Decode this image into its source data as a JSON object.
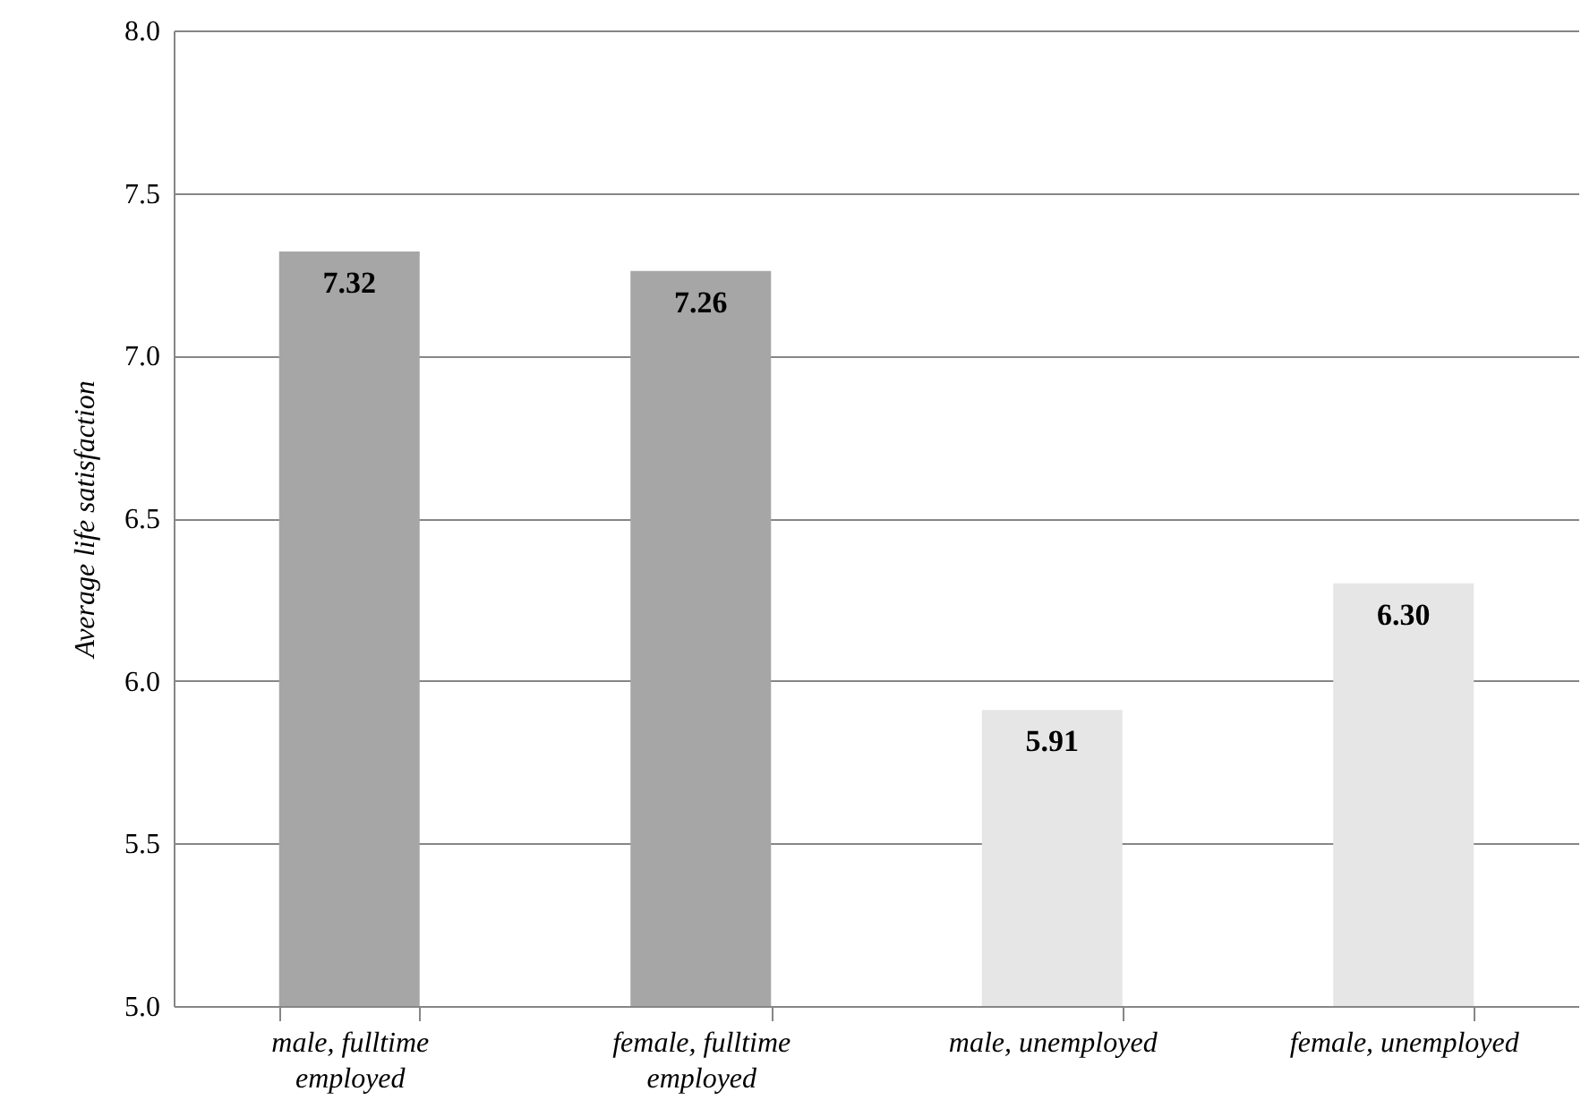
{
  "chart_data": {
    "type": "bar",
    "ylabel": "Average life satisfaction",
    "categories": [
      "male, fulltime employed",
      "female, fulltime employed",
      "male, unemployed",
      "female, unemployed"
    ],
    "values": [
      7.32,
      7.26,
      5.91,
      6.3
    ],
    "value_labels": [
      "7.32",
      "7.26",
      "5.91",
      "6.30"
    ],
    "colors": [
      "#a6a6a6",
      "#a6a6a6",
      "#e6e6e6",
      "#e6e6e6"
    ],
    "ylim": [
      5.0,
      8.0
    ],
    "yticks": [
      {
        "value": 5.0,
        "label": "5.0"
      },
      {
        "value": 5.5,
        "label": "5.5"
      },
      {
        "value": 6.0,
        "label": "6.0"
      },
      {
        "value": 6.5,
        "label": "6.5"
      },
      {
        "value": 7.0,
        "label": "7.0"
      },
      {
        "value": 7.5,
        "label": "7.5"
      },
      {
        "value": 8.0,
        "label": "8.0"
      }
    ],
    "grid": "y"
  }
}
